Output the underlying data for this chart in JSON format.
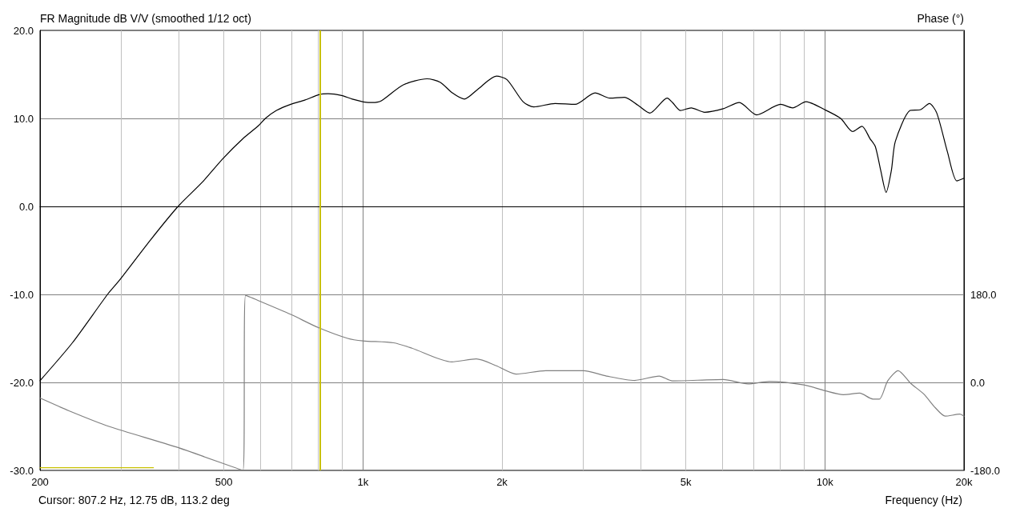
{
  "chart_data": {
    "type": "line",
    "ylabel": "FR Magnitude dB V/V (smoothed 1/12 oct)",
    "y2label": "Phase (°)",
    "xlabel": "Frequency (Hz)",
    "annotations": [
      "Cursor: 807.2 Hz, 12.75 dB, 113.2 deg"
    ],
    "series": [
      {
        "color": "#000000",
        "x": [
          200,
          235,
          280,
          297,
          347,
          398,
          450,
          497,
          550,
          595,
          615,
          650,
          698,
          750,
          803,
          841,
          899,
          948,
          1027,
          1048,
          1096,
          1221,
          1376,
          1471,
          1561,
          1657,
          1772,
          1945,
          2051,
          2221,
          2343,
          2606,
          2879,
          3181,
          3423,
          3683,
          3937,
          4179,
          4557,
          4680,
          4870,
          5135,
          5490,
          6025,
          6527,
          7115,
          8020,
          8514,
          9099,
          9985,
          10818,
          11487,
          12031,
          12521,
          12858,
          13207,
          13567,
          13929,
          14208,
          15289,
          16123,
          16830,
          17467,
          18418,
          19300,
          20000
        ],
        "values": [
          -19.8,
          -15.5,
          -10.0,
          -8.4,
          -3.8,
          0,
          2.8,
          5.4,
          7.7,
          9.2,
          10,
          10.9,
          11.6,
          12.1,
          12.7,
          12.8,
          12.6,
          12.2,
          11.8,
          11.8,
          12.0,
          13.8,
          14.5,
          14.1,
          12.9,
          12.2,
          13.3,
          14.8,
          14.4,
          11.9,
          11.3,
          11.7,
          11.6,
          12.9,
          12.3,
          12.4,
          11.5,
          10.6,
          12.3,
          11.8,
          10.9,
          11.2,
          10.7,
          11.1,
          11.8,
          10.4,
          11.6,
          11.2,
          11.9,
          11.0,
          10.0,
          8.5,
          9.1,
          7.7,
          6.8,
          4.1,
          1.6,
          4.1,
          7.4,
          10.9,
          11.0,
          11.7,
          10.6,
          6.2,
          2.9,
          3.2
        ]
      },
      {
        "color": "#808080",
        "axis": "y2",
        "x": [
          200,
          231,
          282,
          394,
          550,
          557,
          595,
          698,
          801,
          927,
          1000,
          1165,
          1277,
          1557,
          1760,
          1945,
          2145,
          2486,
          3002,
          3367,
          3871,
          4378,
          4673,
          6026,
          6815,
          7582,
          9006,
          10017,
          10963,
          11893,
          12700,
          13123,
          13674,
          14408,
          15339,
          16376,
          17342,
          18222,
          19600,
          20000
        ],
        "values": [
          -32,
          -58,
          -90,
          -132,
          -180,
          178,
          167,
          139,
          112,
          90,
          85,
          81,
          70,
          42,
          48,
          34,
          17,
          24,
          24,
          13,
          4,
          13,
          3,
          6,
          -3,
          2,
          -5,
          -17,
          -25,
          -22,
          -34,
          -34,
          3,
          24,
          -2,
          -24,
          -52,
          -69,
          -65,
          -69
        ]
      },
      {
        "color": "#c8c000",
        "x": [
          200,
          352
        ],
        "values": [
          -29.7,
          -29.7
        ]
      }
    ],
    "xlim": [
      200,
      20000
    ],
    "xticks": [
      200,
      {
        "value": 300,
        "label": null
      },
      {
        "value": 400,
        "label": null
      },
      500,
      {
        "value": 600,
        "label": null
      },
      {
        "value": 700,
        "label": null
      },
      {
        "value": 800,
        "label": null
      },
      {
        "value": 900,
        "label": null
      },
      {
        "value": 1000,
        "label": "1k"
      },
      {
        "value": 2000,
        "label": "2k"
      },
      {
        "value": 3000,
        "label": null
      },
      {
        "value": 4000,
        "label": null
      },
      {
        "value": 5000,
        "label": "5k"
      },
      {
        "value": 6000,
        "label": null
      },
      {
        "value": 7000,
        "label": null
      },
      {
        "value": 8000,
        "label": null
      },
      {
        "value": 9000,
        "label": null
      },
      {
        "value": 10000,
        "label": "10k"
      },
      {
        "value": 20000,
        "label": "20k"
      }
    ],
    "ylim": [
      -30,
      20
    ],
    "yticks": [
      {
        "value": -30,
        "label": "-30.0"
      },
      {
        "value": -20,
        "label": "-20.0"
      },
      {
        "value": -10,
        "label": "-10.0"
      },
      {
        "value": 0,
        "label": "0.0"
      },
      {
        "value": 10,
        "label": "10.0"
      },
      {
        "value": 20,
        "label": "20.0"
      }
    ],
    "y2lim": [
      -180,
      720
    ],
    "y2ticks": [
      {
        "value": -180,
        "label": "-180.0"
      },
      {
        "value": 0,
        "label": "0.0"
      },
      {
        "value": 180,
        "label": "180.0"
      }
    ],
    "log": "x",
    "grid": true,
    "ref_lines": [
      {
        "axis": "x",
        "value": 807.2,
        "color": "#c8c000"
      }
    ]
  }
}
